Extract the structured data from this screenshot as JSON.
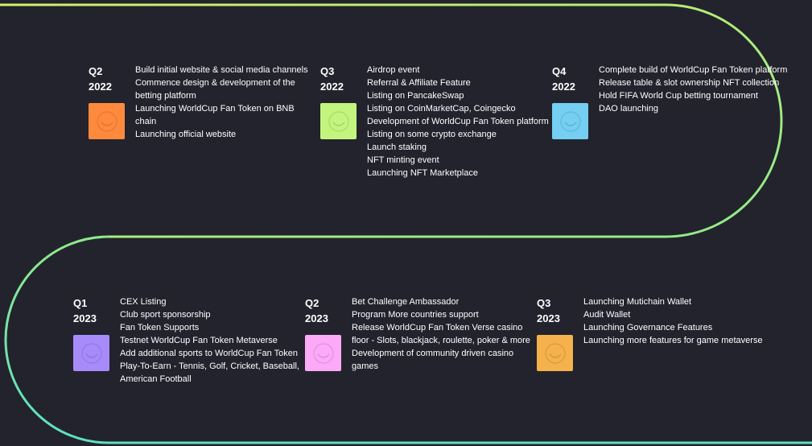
{
  "colors": {
    "background": "#22232c",
    "track_start": "#d4ef6a",
    "track_mid": "#8fe98a",
    "track_end": "#5ee0c4"
  },
  "roadmap": [
    {
      "quarter": "Q2",
      "year": "2022",
      "tile_color": "#ff8a3d",
      "icon": "smile-icon",
      "items": [
        "Build initial website & social media channels",
        "Commence design & development of the betting platform",
        "Launching WorldCup Fan Token on BNB chain",
        "Launching official website"
      ]
    },
    {
      "quarter": "Q3",
      "year": "2022",
      "tile_color": "#c3f57e",
      "icon": "smile-icon",
      "items": [
        "Airdrop event",
        "Referral & Affiliate Feature",
        "Listing on PancakeSwap",
        "Listing on CoinMarketCap, Coingecko",
        "Development of WorldCup Fan Token platform",
        "Listing on some crypto exchange",
        "Launch staking",
        "NFT minting event",
        "Launching NFT Marketplace"
      ]
    },
    {
      "quarter": "Q4",
      "year": "2022",
      "tile_color": "#74cff2",
      "icon": "smile-icon",
      "items": [
        "Complete build of WorldCup Fan Token platform",
        "Release table & slot ownership NFT collection",
        "Hold FIFA World Cup betting tournament",
        "DAO launching"
      ]
    },
    {
      "quarter": "Q1",
      "year": "2023",
      "tile_color": "#a78bfa",
      "icon": "smile-icon",
      "items": [
        "CEX Listing",
        "Club sport sponsorship",
        "Fan Token Supports",
        "Testnet WorldCup Fan Token Metaverse",
        "Add additional sports to WorldCup Fan Token",
        "Play-To-Earn - Tennis, Golf, Cricket, Baseball, American Football"
      ]
    },
    {
      "quarter": "Q2",
      "year": "2023",
      "tile_color": "#fca9f7",
      "icon": "smile-icon",
      "items": [
        "Bet Challenge Ambassador",
        "Program More countries support",
        "Release WorldCup Fan Token Verse casino floor - Slots, blackjack, roulette, poker & more",
        "Development of community driven casino games"
      ]
    },
    {
      "quarter": "Q3",
      "year": "2023",
      "tile_color": "#f5b14c",
      "icon": "smile-icon",
      "items": [
        "Launching Mutichain Wallet",
        "Audit Wallet",
        "Launching Governance Features",
        "Launching more features for game metaverse"
      ]
    }
  ]
}
